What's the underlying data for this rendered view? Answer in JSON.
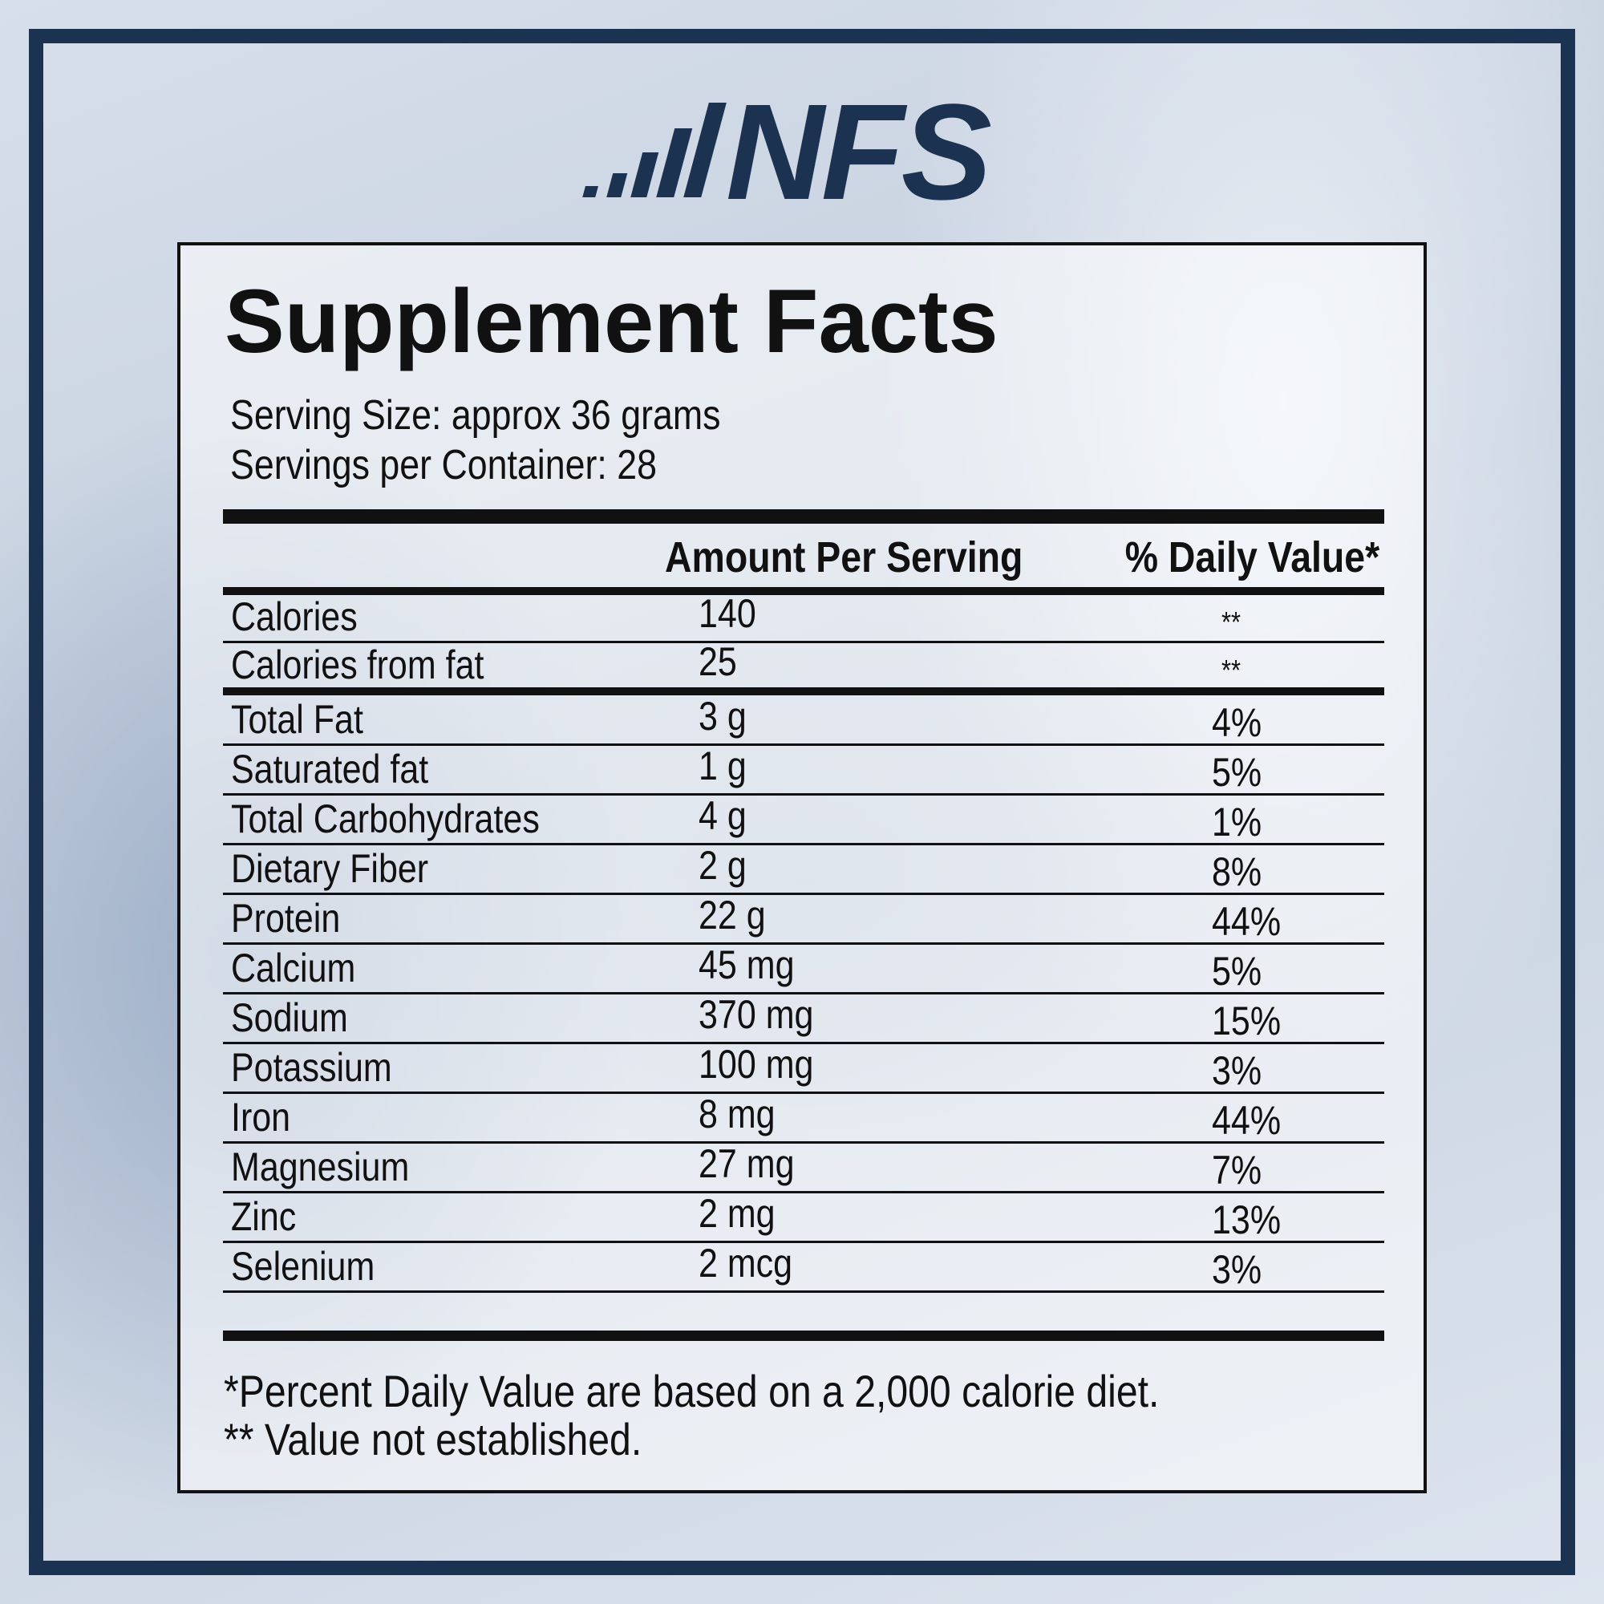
{
  "logo": {
    "text": "NFS"
  },
  "title": "Supplement Facts",
  "serving_size": "Serving Size: approx 36 grams",
  "servings_per_container": "Servings per Container: 28",
  "table": {
    "header": [
      "Amount Per Serving",
      "% Daily Value*"
    ],
    "rows": [
      [
        "Calories",
        "140",
        "**"
      ],
      [
        "Calories from fat",
        "25",
        "**"
      ],
      [
        "Total Fat",
        "3 g",
        "4%"
      ],
      [
        "Saturated fat",
        "1 g",
        "5%"
      ],
      [
        "Total Carbohydrates",
        "4 g",
        "1%"
      ],
      [
        "Dietary Fiber",
        "2 g",
        "8%"
      ],
      [
        "Protein",
        "22 g",
        "44%"
      ],
      [
        "Calcium",
        "45 mg",
        "5%"
      ],
      [
        "Sodium",
        "370 mg",
        "15%"
      ],
      [
        "Potassium",
        "100 mg",
        "3%"
      ],
      [
        "Iron",
        "8 mg",
        "44%"
      ],
      [
        "Magnesium",
        "27 mg",
        "7%"
      ],
      [
        "Zinc",
        "2 mg",
        "13%"
      ],
      [
        "Selenium",
        "2 mcg",
        "3%"
      ]
    ]
  },
  "footnotes": [
    "*Percent Daily Value are based on a 2,000 calorie diet.",
    "** Value not established."
  ]
}
